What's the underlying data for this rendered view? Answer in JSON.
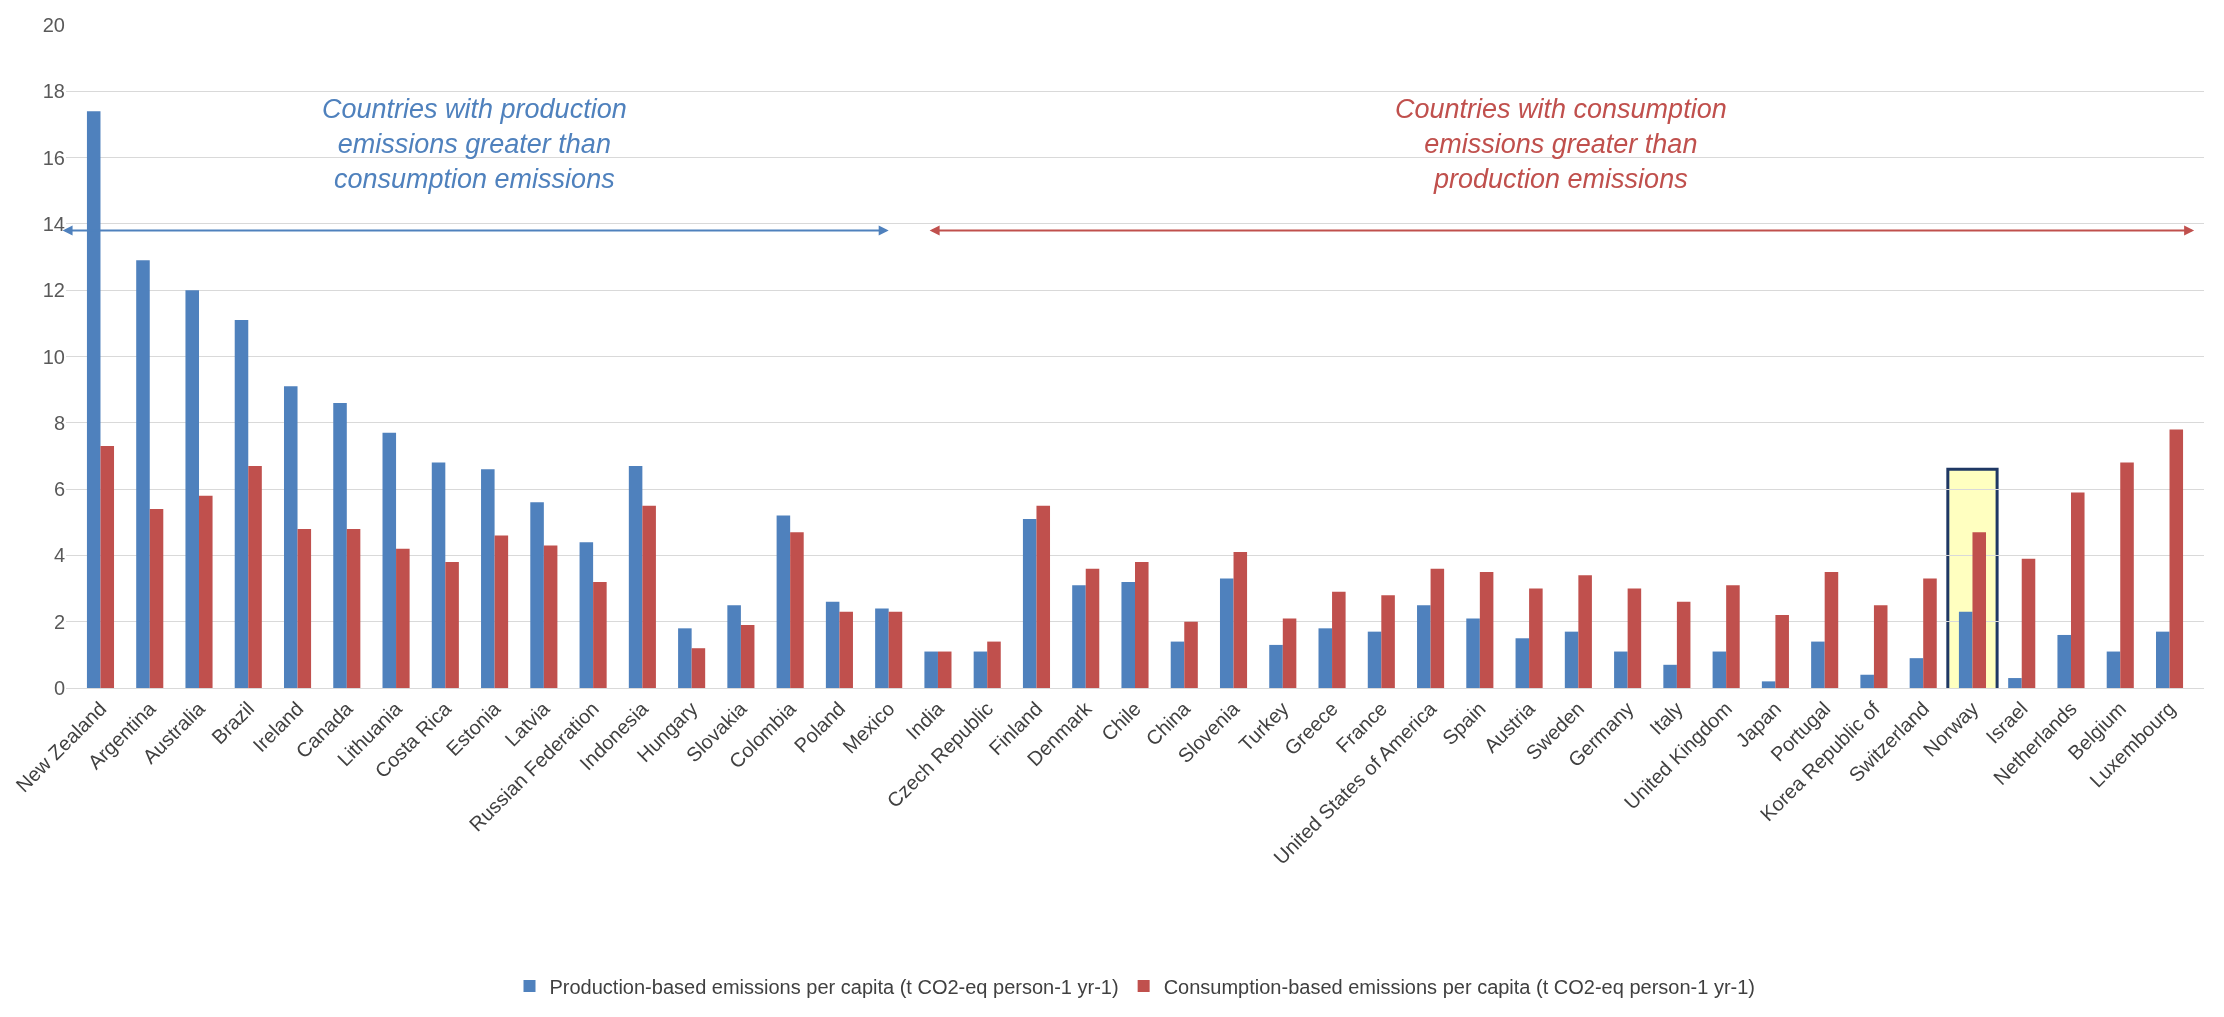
{
  "chart_data": {
    "type": "bar",
    "categories": [
      "New Zealand",
      "Argentina",
      "Australia",
      "Brazil",
      "Ireland",
      "Canada",
      "Lithuania",
      "Costa Rica",
      "Estonia",
      "Latvia",
      "Russian Federation",
      "Indonesia",
      "Hungary",
      "Slovakia",
      "Colombia",
      "Poland",
      "Mexico",
      "India",
      "Czech Republic",
      "Finland",
      "Denmark",
      "Chile",
      "China",
      "Slovenia",
      "Turkey",
      "Greece",
      "France",
      "United States of America",
      "Spain",
      "Austria",
      "Sweden",
      "Germany",
      "Italy",
      "United Kingdom",
      "Japan",
      "Portugal",
      "Korea Republic of",
      "Switzerland",
      "Norway",
      "Israel",
      "Netherlands",
      "Belgium",
      "Luxembourg"
    ],
    "series": [
      {
        "name": "Production-based emissions per capita (t CO2-eq person-1 yr-1)",
        "color": "#4f81bd",
        "values": [
          17.4,
          12.9,
          12.0,
          11.1,
          9.1,
          8.6,
          7.7,
          6.8,
          6.6,
          5.6,
          4.4,
          6.7,
          1.8,
          2.5,
          5.2,
          2.6,
          2.4,
          1.1,
          1.1,
          5.1,
          3.1,
          3.2,
          1.4,
          3.3,
          1.3,
          1.8,
          1.7,
          2.5,
          2.1,
          1.5,
          1.7,
          1.1,
          0.7,
          1.1,
          0.2,
          1.4,
          0.4,
          0.9,
          2.3,
          0.3,
          1.6,
          1.1,
          1.7
        ]
      },
      {
        "name": "Consumption-based emissions per capita (t CO2-eq person-1 yr-1)",
        "color": "#c0504d",
        "values": [
          7.3,
          5.4,
          5.8,
          6.7,
          4.8,
          4.8,
          4.2,
          3.8,
          4.6,
          4.3,
          3.2,
          5.5,
          1.2,
          1.9,
          4.7,
          2.3,
          2.3,
          1.1,
          1.4,
          5.5,
          3.6,
          3.8,
          2.0,
          4.1,
          2.1,
          2.9,
          2.8,
          3.6,
          3.5,
          3.0,
          3.4,
          3.0,
          2.6,
          3.1,
          2.2,
          3.5,
          2.5,
          3.3,
          4.7,
          3.9,
          5.9,
          6.8,
          7.8
        ]
      }
    ],
    "annotations": [
      "Countries with production emissions greater than consumption emissions",
      "Countries with consumption emissions greater than production emissions"
    ],
    "bands": [
      {
        "axis": "x",
        "from": "Norway",
        "to": "Norway",
        "color": "#ffffc0"
      }
    ],
    "ylim": [
      0,
      20
    ],
    "yticks": [
      0,
      2,
      4,
      6,
      8,
      10,
      12,
      14,
      16,
      18,
      20
    ],
    "grid": "y",
    "legend": "bottom"
  }
}
